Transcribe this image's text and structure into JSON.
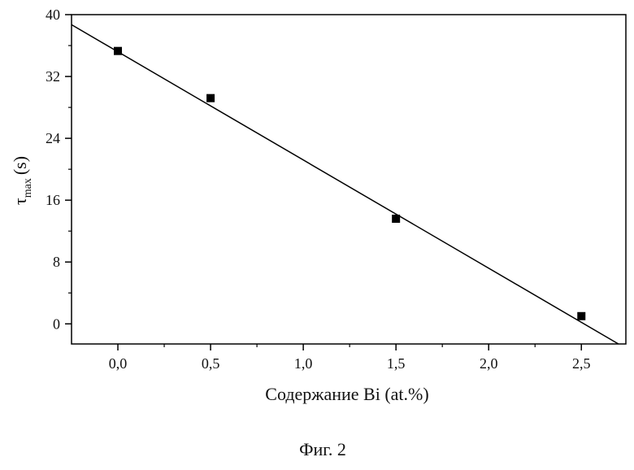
{
  "chart_data": {
    "type": "scatter",
    "x_label": "Содержание Bi (at.%)",
    "y_label": {
      "symbol": "τ",
      "subscript": "max",
      "unit": "(s)"
    },
    "caption": "Фиг. 2",
    "xlim": [
      -0.25,
      2.74
    ],
    "ylim": [
      -2.6,
      40
    ],
    "xticks": [
      {
        "value": 0,
        "label": "0,0"
      },
      {
        "value": 0.5,
        "label": "0,5"
      },
      {
        "value": 1,
        "label": "1,0"
      },
      {
        "value": 1.5,
        "label": "1,5"
      },
      {
        "value": 2,
        "label": "2,0"
      },
      {
        "value": 2.5,
        "label": "2,5"
      }
    ],
    "yticks": [
      0,
      8,
      16,
      24,
      32,
      40
    ],
    "xminorticks": [
      0.25,
      0.75,
      1.25,
      1.75,
      2.25
    ],
    "yminorticks": [
      4,
      12,
      20,
      28,
      36
    ],
    "x": [
      0,
      0.5,
      1.5,
      2.5
    ],
    "values": [
      35.3,
      29.2,
      13.6,
      1.0
    ],
    "color": "#000000",
    "fit": {
      "x": [
        -0.25,
        2.7
      ],
      "values": [
        38.7,
        -2.6
      ]
    }
  }
}
